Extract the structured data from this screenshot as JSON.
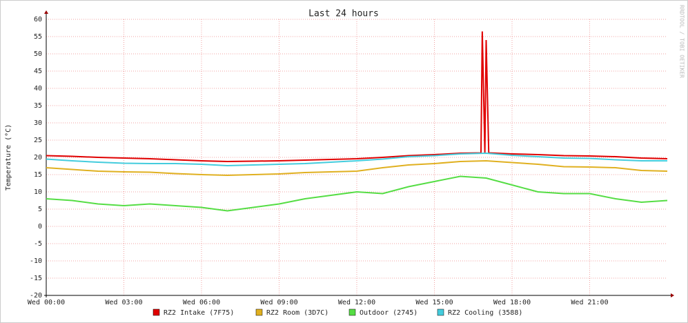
{
  "chart_data": {
    "type": "line",
    "title": "Last 24 hours",
    "y_label": "Temperature (°C)",
    "watermark": "RRDTOOL / TOBI OETIKER",
    "xlim": [
      0,
      24
    ],
    "ylim": [
      -20,
      60
    ],
    "xticks": [
      {
        "value": 0,
        "label": "Wed 00:00"
      },
      {
        "value": 3,
        "label": "Wed 03:00"
      },
      {
        "value": 6,
        "label": "Wed 06:00"
      },
      {
        "value": 9,
        "label": "Wed 09:00"
      },
      {
        "value": 12,
        "label": "Wed 12:00"
      },
      {
        "value": 15,
        "label": "Wed 15:00"
      },
      {
        "value": 18,
        "label": "Wed 18:00"
      },
      {
        "value": 21,
        "label": "Wed 21:00"
      }
    ],
    "yticks": [
      -20,
      -15,
      -10,
      -5,
      0,
      5,
      10,
      15,
      20,
      25,
      30,
      35,
      40,
      45,
      50,
      55,
      60
    ],
    "grid": true,
    "series": [
      {
        "name": "RZ2 Intake (7F75)",
        "color": "#e00000",
        "x": [
          0,
          1,
          2,
          3,
          4,
          5,
          6,
          7,
          8,
          9,
          10,
          11,
          12,
          13,
          14,
          15,
          16,
          16.8,
          16.85,
          16.95,
          17.0,
          17.1,
          18,
          19,
          20,
          21,
          22,
          23,
          24
        ],
        "values": [
          20.5,
          20.3,
          20,
          19.8,
          19.6,
          19.3,
          19,
          18.8,
          18.9,
          19,
          19.2,
          19.4,
          19.6,
          20,
          20.5,
          20.8,
          21.2,
          21.3,
          56.5,
          21.3,
          54,
          21.3,
          21,
          20.8,
          20.5,
          20.4,
          20.2,
          19.8,
          19.6
        ]
      },
      {
        "name": "RZ2 Room (3D7C)",
        "color": "#e0b020",
        "x": [
          0,
          1,
          2,
          3,
          4,
          5,
          6,
          7,
          8,
          9,
          10,
          11,
          12,
          13,
          14,
          15,
          16,
          17,
          18,
          19,
          20,
          21,
          22,
          23,
          24
        ],
        "values": [
          17,
          16.5,
          16,
          15.8,
          15.7,
          15.3,
          15,
          14.8,
          15,
          15.2,
          15.6,
          15.8,
          16,
          17,
          17.8,
          18.2,
          18.8,
          19,
          18.5,
          18,
          17.3,
          17.2,
          17,
          16.2,
          16
        ]
      },
      {
        "name": "Outdoor (2745)",
        "color": "#55dd44",
        "x": [
          0,
          1,
          2,
          3,
          4,
          5,
          6,
          7,
          8,
          9,
          10,
          11,
          12,
          13,
          14,
          15,
          16,
          17,
          18,
          19,
          20,
          21,
          22,
          23,
          24
        ],
        "values": [
          8,
          7.5,
          6.5,
          6,
          6.5,
          6,
          5.5,
          4.5,
          5.5,
          6.5,
          8,
          9,
          10,
          9.5,
          11.5,
          13,
          14.5,
          14,
          12,
          10,
          9.5,
          9.5,
          8,
          7,
          7.5
        ]
      },
      {
        "name": "RZ2 Cooling (3588)",
        "color": "#44ccdd",
        "x": [
          0,
          1,
          2,
          3,
          4,
          5,
          6,
          7,
          8,
          9,
          10,
          11,
          12,
          13,
          14,
          15,
          16,
          17,
          18,
          19,
          20,
          21,
          22,
          23,
          24
        ],
        "values": [
          19.5,
          19,
          18.6,
          18.3,
          18.2,
          18.2,
          18,
          17.6,
          17.8,
          18,
          18.2,
          18.6,
          19,
          19.5,
          20.2,
          20.5,
          21,
          21.2,
          20.6,
          20.2,
          19.8,
          19.7,
          19.3,
          19,
          19
        ]
      }
    ]
  }
}
